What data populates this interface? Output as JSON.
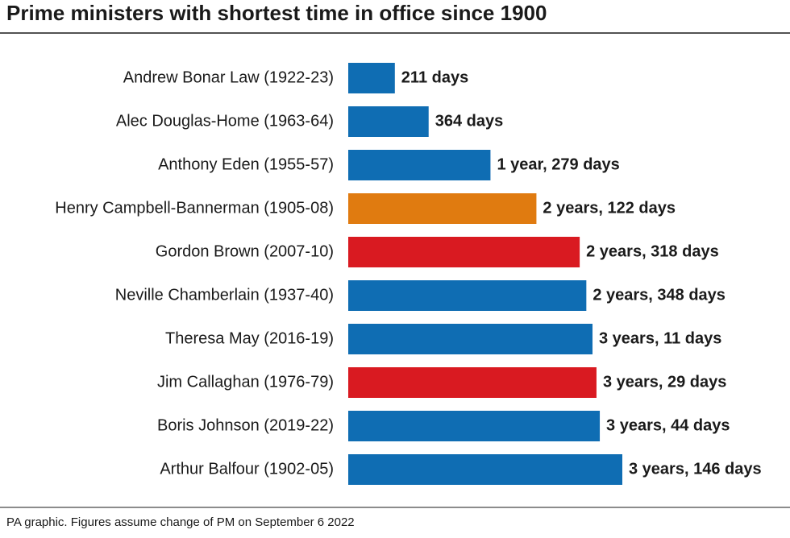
{
  "chart_data": {
    "type": "bar",
    "orientation": "horizontal",
    "title": "Prime ministers with shortest time in office since 1900",
    "categories": [
      "Andrew Bonar Law (1922-23)",
      "Alec Douglas-Home (1963-64)",
      "Anthony Eden (1955-57)",
      "Henry Campbell-Bannerman (1905-08)",
      "Gordon Brown (2007-10)",
      "Neville Chamberlain (1937-40)",
      "Theresa May (2016-19)",
      "Jim Callaghan (1976-79)",
      "Boris Johnson (2019-22)",
      "Arthur Balfour (1902-05)"
    ],
    "values": [
      211,
      364,
      644,
      852,
      1048,
      1078,
      1106,
      1124,
      1139,
      1241
    ],
    "value_labels": [
      "211 days",
      "364 days",
      "1 year, 279 days",
      "2 years, 122 days",
      "2 years, 318 days",
      "2 years, 348 days",
      "3 years, 11 days",
      "3 years, 29 days",
      "3 years, 44 days",
      "3 years, 146 days"
    ],
    "colors": [
      "#0f6db3",
      "#0f6db3",
      "#0f6db3",
      "#e07b10",
      "#d91a21",
      "#0f6db3",
      "#0f6db3",
      "#d91a21",
      "#0f6db3",
      "#0f6db3"
    ],
    "note": "PA graphic. Figures assume change of PM on September 6 2022"
  }
}
